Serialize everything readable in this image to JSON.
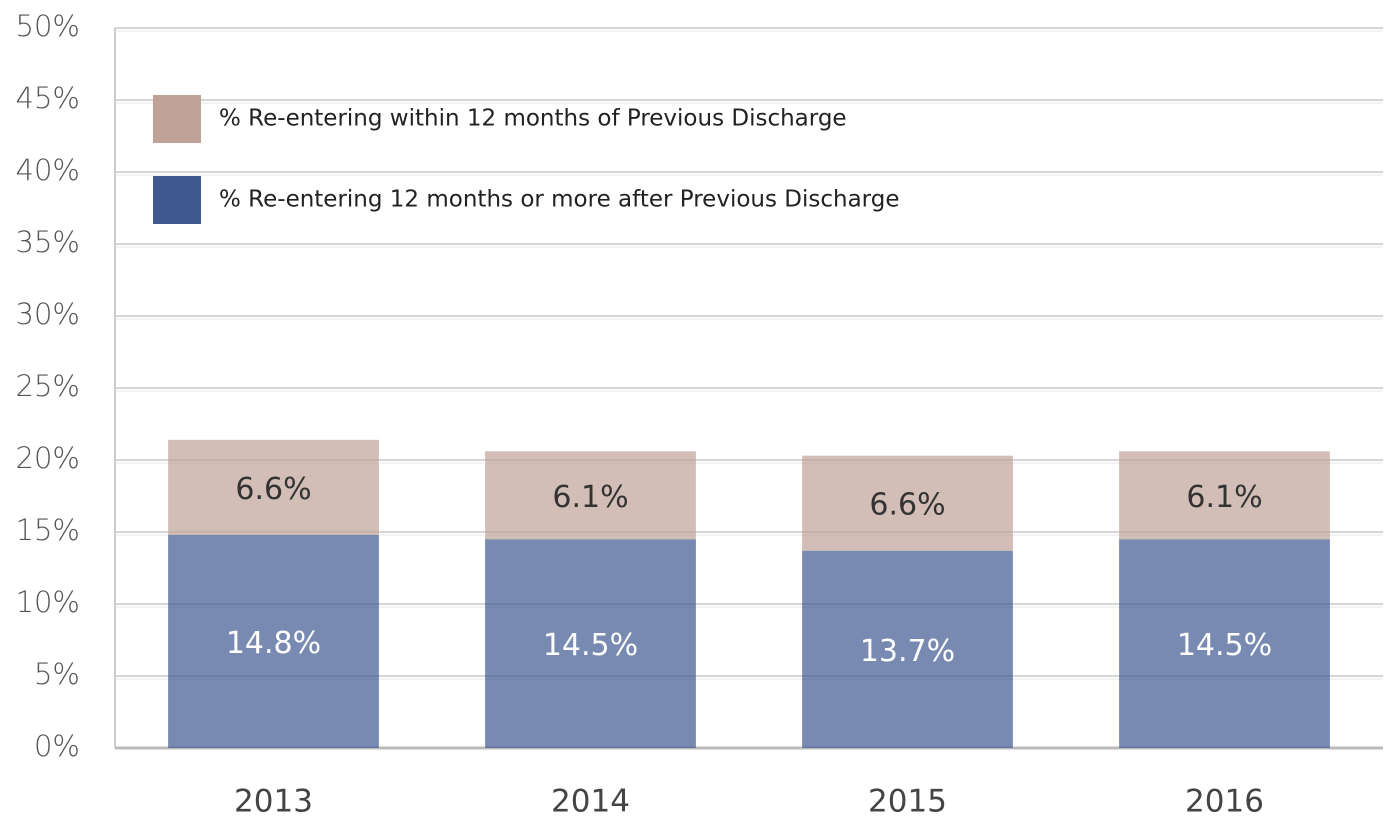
{
  "chart_data": {
    "type": "stacked_bar",
    "categories": [
      "2013",
      "2014",
      "2015",
      "2016"
    ],
    "series": [
      {
        "name": "% Re-entering 12 months or more after Previous Discharge",
        "color": "#3f5890",
        "values": [
          14.8,
          14.5,
          13.7,
          14.5
        ],
        "value_labels": [
          "14.8%",
          "14.5%",
          "13.7%",
          "14.5%"
        ]
      },
      {
        "name": "% Re-entering within 12 months of Previous Discharge",
        "color": "#bfa398",
        "values": [
          6.6,
          6.1,
          6.6,
          6.1
        ],
        "value_labels": [
          "6.6%",
          "6.1%",
          "6.6%",
          "6.1%"
        ]
      }
    ],
    "ylim": [
      0,
      50
    ],
    "yticks": [
      {
        "value": 0,
        "label": "0%"
      },
      {
        "value": 5,
        "label": "5%"
      },
      {
        "value": 10,
        "label": "10%"
      },
      {
        "value": 15,
        "label": "15%"
      },
      {
        "value": 20,
        "label": "20%"
      },
      {
        "value": 25,
        "label": "25%"
      },
      {
        "value": 30,
        "label": "30%"
      },
      {
        "value": 35,
        "label": "35%"
      },
      {
        "value": 40,
        "label": "40%"
      },
      {
        "value": 45,
        "label": "45%"
      },
      {
        "value": 50,
        "label": "50%"
      }
    ],
    "grid": true,
    "legend": "top-left"
  }
}
